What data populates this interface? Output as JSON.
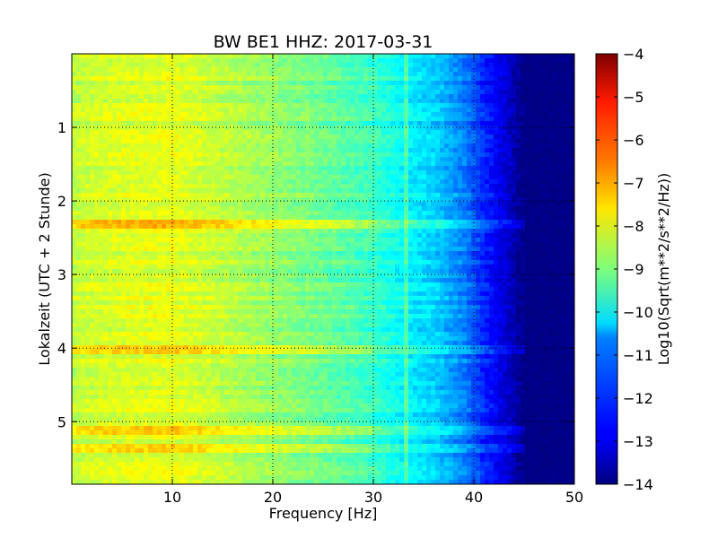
{
  "chart_data": {
    "type": "heatmap",
    "title": "BW BE1 HHZ: 2017-03-31",
    "xlabel": "Frequency [Hz]",
    "ylabel": "Lokalzeit (UTC + 2 Stunde)",
    "xlim": [
      0,
      50
    ],
    "ylim": [
      5.85,
      0
    ],
    "x_ticks": [
      10,
      20,
      30,
      40,
      50
    ],
    "x_tick_labels": [
      "10",
      "20",
      "30",
      "40",
      "50"
    ],
    "y_ticks": [
      1,
      2,
      3,
      4,
      5
    ],
    "y_tick_labels": [
      "1",
      "2",
      "3",
      "4",
      "5"
    ],
    "grid": true,
    "colormap": "jet",
    "colorbar": {
      "label": "Log10(Sqrt(m**2/s**2/Hz))",
      "range": [
        -14,
        -4
      ],
      "ticks": [
        -4,
        -5,
        -6,
        -7,
        -8,
        -9,
        -10,
        -11,
        -12,
        -13,
        -14
      ],
      "tick_labels": [
        "−4",
        "−5",
        "−6",
        "−7",
        "−8",
        "−9",
        "−10",
        "−11",
        "−12",
        "−13",
        "−14"
      ]
    },
    "spectral_profile": {
      "frequency_hz": [
        0,
        2,
        5,
        10,
        15,
        20,
        25,
        30,
        33,
        36,
        39,
        41,
        43,
        45,
        50
      ],
      "log10_amplitude": [
        -8.4,
        -8.2,
        -8.1,
        -8.0,
        -8.4,
        -8.8,
        -9.2,
        -9.7,
        -10.3,
        -10.7,
        -11.5,
        -12.4,
        -13.1,
        -14.0,
        -14.0
      ]
    },
    "annotations": {
      "spectral_line_hz": 33.2,
      "high_energy_bands_hours": [
        2.3,
        4.0,
        5.1,
        5.35
      ]
    }
  }
}
